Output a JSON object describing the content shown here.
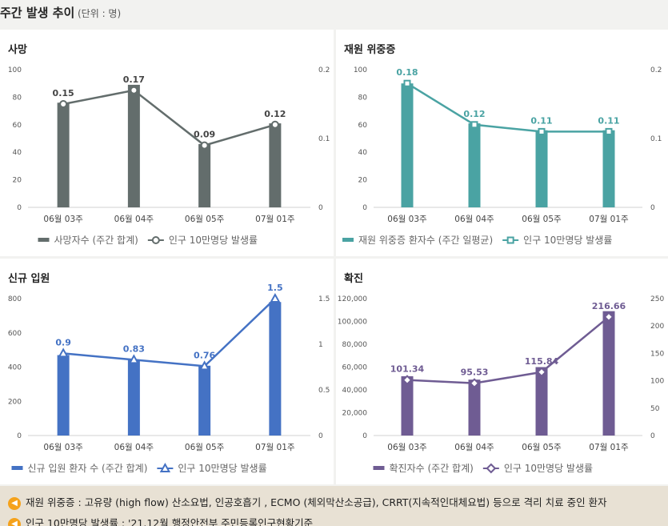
{
  "header": {
    "title": "주간 발생 추이",
    "unit": "(단위 : 명)"
  },
  "categories": [
    "06월 03주",
    "06월 04주",
    "06월 05주",
    "07월 01주"
  ],
  "panels": [
    {
      "id": "deaths",
      "title": "사망",
      "color": "#636d6c",
      "lineColor": "#636d6c",
      "marker": "circle",
      "chart_data": {
        "type": "bar",
        "categories": [
          "06월 03주",
          "06월 04주",
          "06월 05주",
          "07월 01주"
        ],
        "series": [
          {
            "name": "사망자수 (주간 합계)",
            "type": "bar",
            "axis": "left",
            "values": [
              76,
              89,
              46,
              61
            ]
          },
          {
            "name": "인구 10만명당 발생률",
            "type": "line",
            "axis": "right",
            "values": [
              0.15,
              0.17,
              0.09,
              0.12
            ]
          }
        ],
        "ylim": [
          0,
          100
        ],
        "y2lim": [
          0,
          0.2
        ],
        "yticks": [
          "0",
          "20",
          "40",
          "60",
          "80",
          "100"
        ],
        "yticksValues": [
          0,
          20,
          40,
          60,
          80,
          100
        ],
        "y2ticks": [
          "0",
          "0.1",
          "0.2"
        ],
        "y2ticksValues": [
          0,
          0.1,
          0.2
        ],
        "dataLabels": [
          "0.15",
          "0.17",
          "0.09",
          "0.12"
        ]
      }
    },
    {
      "id": "severe",
      "title": "재원 위중증",
      "color": "#4aa3a3",
      "lineColor": "#4aa3a3",
      "marker": "square",
      "chart_data": {
        "type": "bar",
        "categories": [
          "06월 03주",
          "06월 04주",
          "06월 05주",
          "07월 01주"
        ],
        "series": [
          {
            "name": "재원 위중증 환자수 (주간 일평균)",
            "type": "bar",
            "axis": "left",
            "values": [
              90,
              61,
              56,
              56
            ]
          },
          {
            "name": "인구 10만명당 발생률",
            "type": "line",
            "axis": "right",
            "values": [
              0.18,
              0.12,
              0.11,
              0.11
            ]
          }
        ],
        "ylim": [
          0,
          100
        ],
        "y2lim": [
          0,
          0.2
        ],
        "yticks": [
          "0",
          "20",
          "40",
          "60",
          "80",
          "100"
        ],
        "yticksValues": [
          0,
          20,
          40,
          60,
          80,
          100
        ],
        "y2ticks": [
          "0",
          "0.1",
          "0.2"
        ],
        "y2ticksValues": [
          0,
          0.1,
          0.2
        ],
        "dataLabels": [
          "0.18",
          "0.12",
          "0.11",
          "0.11"
        ]
      }
    },
    {
      "id": "admission",
      "title": "신규 입원",
      "color": "#4472c4",
      "lineColor": "#4472c4",
      "marker": "triangle",
      "chart_data": {
        "type": "bar",
        "categories": [
          "06월 03주",
          "06월 04주",
          "06월 05주",
          "07월 01주"
        ],
        "series": [
          {
            "name": "신규 입원 환자 수 (주간 합계)",
            "type": "bar",
            "axis": "left",
            "values": [
              470,
              440,
              408,
              780
            ]
          },
          {
            "name": "인구 10만명당 발생률",
            "type": "line",
            "axis": "right",
            "values": [
              0.9,
              0.83,
              0.76,
              1.5
            ]
          }
        ],
        "ylim": [
          0,
          800
        ],
        "y2lim": [
          0,
          1.5
        ],
        "yticks": [
          "0",
          "200",
          "400",
          "600",
          "800"
        ],
        "yticksValues": [
          0,
          200,
          400,
          600,
          800
        ],
        "y2ticks": [
          "0",
          "0.5",
          "1",
          "1.5"
        ],
        "y2ticksValues": [
          0,
          0.5,
          1,
          1.5
        ],
        "dataLabels": [
          "0.9",
          "0.83",
          "0.76",
          "1.5"
        ]
      }
    },
    {
      "id": "confirmed",
      "title": "확진",
      "color": "#6f5c93",
      "lineColor": "#6f5c93",
      "marker": "diamond",
      "chart_data": {
        "type": "bar",
        "categories": [
          "06월 03주",
          "06월 04주",
          "06월 05주",
          "07월 01주"
        ],
        "series": [
          {
            "name": "확진자수 (주간 합계)",
            "type": "bar",
            "axis": "left",
            "values": [
              52000,
              49000,
              60000,
              109000
            ]
          },
          {
            "name": "인구 10만명당 발생률",
            "type": "line",
            "axis": "right",
            "values": [
              101.34,
              95.53,
              115.84,
              216.66
            ]
          }
        ],
        "ylim": [
          0,
          120000
        ],
        "y2lim": [
          0,
          250
        ],
        "yticks": [
          "0",
          "20,000",
          "40,000",
          "60,000",
          "80,000",
          "100,000",
          "120,000"
        ],
        "yticksValues": [
          0,
          20000,
          40000,
          60000,
          80000,
          100000,
          120000
        ],
        "y2ticks": [
          "0",
          "50",
          "100",
          "150",
          "200",
          "250"
        ],
        "y2ticksValues": [
          0,
          50,
          100,
          150,
          200,
          250
        ],
        "dataLabels": [
          "101.34",
          "95.53",
          "115.84",
          "216.66"
        ]
      }
    }
  ],
  "notes": [
    "재원 위중증 : 고유량 (high flow) 산소요법, 인공호흡기 , ECMO (체외막산소공급), CRRT(지속적인대체요법) 등으로 격리 치료 중인 환자",
    "인구 10만명당 발생률 : '21.12월 행정안전부 주민등록인구현황기준"
  ],
  "icons": {
    "note": "speaker-icon"
  }
}
